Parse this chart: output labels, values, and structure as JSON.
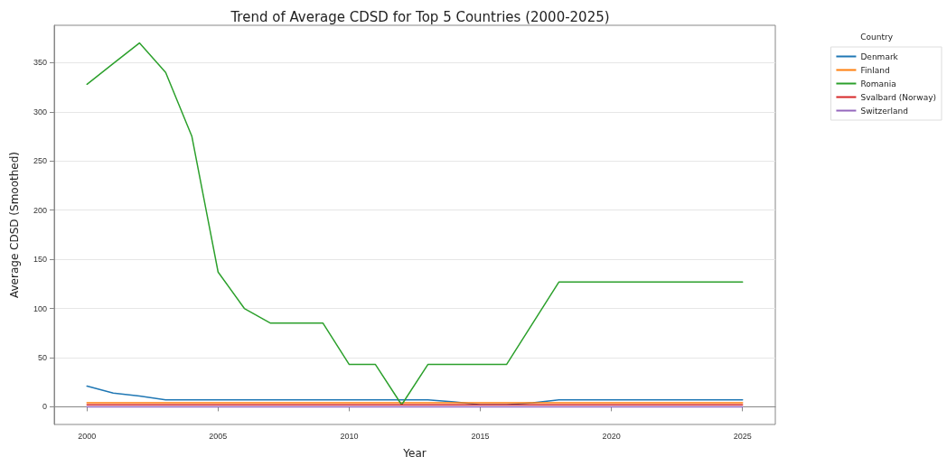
{
  "chart_data": {
    "type": "line",
    "title": "Trend of Average CDSD for Top 5 Countries (2000-2025)",
    "xlabel": "Year",
    "ylabel": "Average CDSD (Smoothed)",
    "legend_title": "Country",
    "x": [
      2000,
      2001,
      2002,
      2003,
      2004,
      2005,
      2006,
      2007,
      2008,
      2009,
      2010,
      2011,
      2012,
      2013,
      2014,
      2015,
      2016,
      2017,
      2018,
      2019,
      2020,
      2021,
      2022,
      2023,
      2024,
      2025
    ],
    "series": [
      {
        "name": "Denmark",
        "color": "#1f77b4",
        "values": [
          21,
          14,
          11,
          7,
          7,
          7,
          7,
          7,
          7,
          7,
          7,
          7,
          7,
          7,
          5,
          2,
          2,
          4,
          7,
          7,
          7,
          7,
          7,
          7,
          7,
          7
        ]
      },
      {
        "name": "Finland",
        "color": "#ff7f0e",
        "values": [
          4,
          4,
          4,
          4,
          4,
          4,
          4,
          4,
          4,
          4,
          4,
          4,
          4,
          4,
          4,
          4,
          4,
          4,
          4,
          4,
          4,
          4,
          4,
          4,
          4,
          4
        ]
      },
      {
        "name": "Romania",
        "color": "#2ca02c",
        "values": [
          328,
          349,
          370,
          340,
          275,
          137,
          100,
          85,
          85,
          85,
          43,
          43,
          2,
          43,
          43,
          43,
          43,
          85,
          127,
          127,
          127,
          127,
          127,
          127,
          127,
          127
        ]
      },
      {
        "name": "Svalbard (Norway)",
        "color": "#d62728",
        "values": [
          2,
          2,
          2,
          2,
          2,
          2,
          2,
          2,
          2,
          2,
          2,
          2,
          2,
          2,
          2,
          2,
          2,
          2,
          2,
          2,
          2,
          2,
          2,
          2,
          2,
          2
        ]
      },
      {
        "name": "Switzerland",
        "color": "#9467bd",
        "values": [
          0,
          0,
          0,
          0,
          0,
          0,
          0,
          0,
          0,
          0,
          0,
          0,
          0,
          0,
          0,
          0,
          0,
          0,
          0,
          0,
          0,
          0,
          0,
          0,
          0,
          0
        ]
      }
    ],
    "xlim": [
      1998.75,
      2026.25
    ],
    "xticks": [
      2000,
      2005,
      2010,
      2015,
      2020,
      2025
    ],
    "ylim": [
      -18,
      388
    ],
    "yticks": [
      0,
      50,
      100,
      150,
      200,
      250,
      300,
      350
    ],
    "grid": "y",
    "legend": "top right",
    "marker": "none",
    "line_style": "solid"
  }
}
